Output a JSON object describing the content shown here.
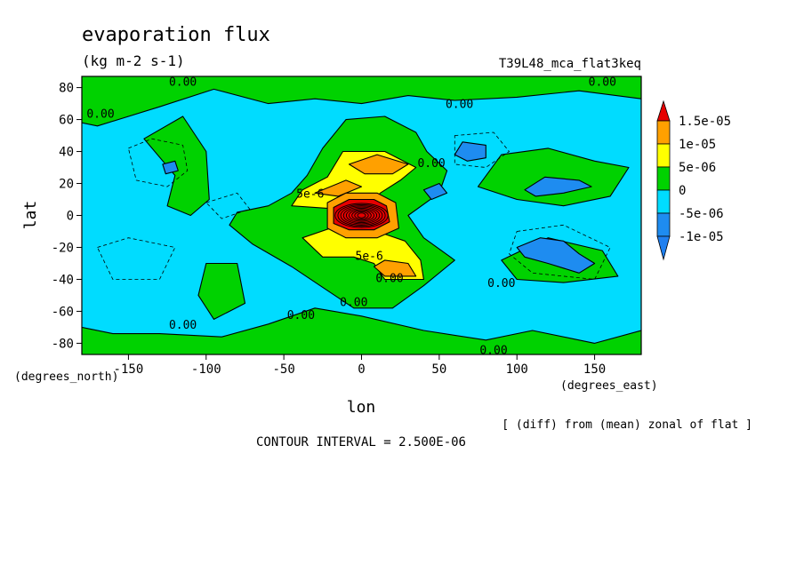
{
  "chart_data": {
    "type": "heatmap",
    "title": "evaporation flux",
    "subtitle": "(kg m-2 s-1)",
    "run_label": "T39L48_mca_flat3keq",
    "xlabel": "lon",
    "ylabel": "lat",
    "x_unit_label": "(degrees_east)",
    "y_unit_label": "(degrees_north)",
    "xlim": [
      -180,
      180
    ],
    "ylim": [
      -87,
      87
    ],
    "x_ticks": [
      -150,
      -100,
      -50,
      0,
      50,
      100,
      150
    ],
    "y_ticks": [
      -80,
      -60,
      -40,
      -20,
      0,
      20,
      40,
      60,
      80
    ],
    "x_tick_labels": [
      "-150",
      "-100",
      "-50",
      "0",
      "50",
      "100",
      "150"
    ],
    "y_tick_labels": [
      "-80",
      "-60",
      "-40",
      "-20",
      "0",
      "20",
      "40",
      "60",
      "80"
    ],
    "note": "[ (diff) from (mean) zonal of flat ]",
    "contour_interval_text": "CONTOUR INTERVAL = 2.500E-06",
    "contour_interval": 2.5e-06,
    "colorbar": {
      "levels": [
        -1e-05,
        -5e-06,
        0,
        5e-06,
        1e-05,
        1.5e-05
      ],
      "labels": [
        "-1e-05",
        "-5e-06",
        "0",
        "5e-06",
        "1e-05",
        "1.5e-05"
      ],
      "colors": [
        "#1e8cf0",
        "#00dcff",
        "#00d200",
        "#ffff00",
        "#ffa000",
        "#e60000",
        "#2080f0"
      ]
    },
    "fill_colors": {
      "neg_strong": "#1e8cf0",
      "neg": "#00dcff",
      "pos": "#00d200",
      "pos_mid": "#ffff00",
      "pos_high": "#ffa000",
      "max": "#e60000"
    },
    "contour_labels": [
      {
        "text": "0.00",
        "lon": -115,
        "lat": 84
      },
      {
        "text": "0.00",
        "lon": -168,
        "lat": 64
      },
      {
        "text": "0.00",
        "lon": 63,
        "lat": 70
      },
      {
        "text": "0.00",
        "lon": 155,
        "lat": 84
      },
      {
        "text": "0.00",
        "lon": 45,
        "lat": 33
      },
      {
        "text": "5e-6",
        "lon": -33,
        "lat": 14
      },
      {
        "text": "5e-6",
        "lon": 5,
        "lat": -25
      },
      {
        "text": "0.00",
        "lon": 18,
        "lat": -39
      },
      {
        "text": "0.00",
        "lon": 90,
        "lat": -42
      },
      {
        "text": "0.00",
        "lon": -5,
        "lat": -54
      },
      {
        "text": "0.00",
        "lon": -39,
        "lat": -62
      },
      {
        "text": "0.00",
        "lon": -115,
        "lat": -68
      },
      {
        "text": "0.00",
        "lon": 85,
        "lat": -84
      }
    ]
  }
}
